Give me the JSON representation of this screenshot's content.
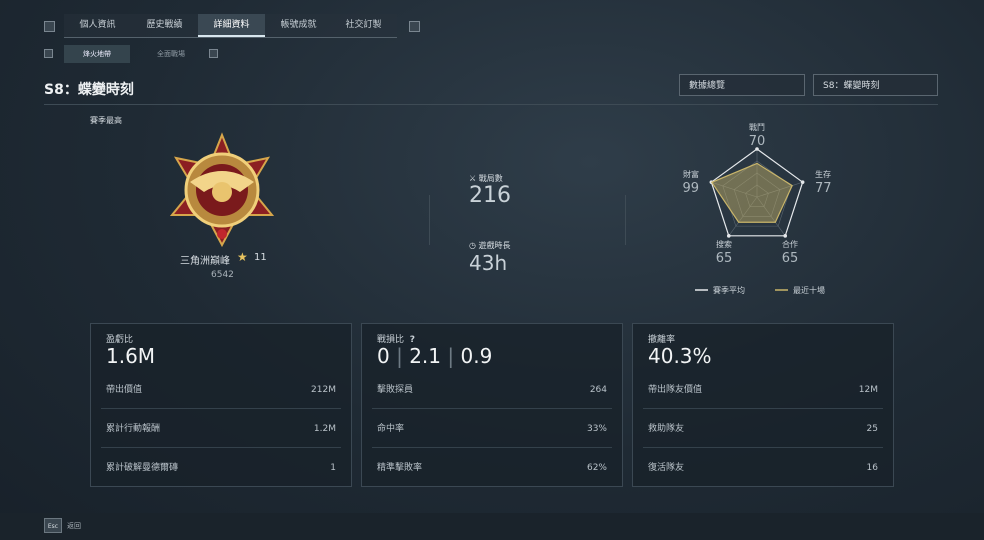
{
  "tabs": [
    "個人資訊",
    "歷史戰績",
    "詳細資料",
    "帳號成就",
    "社交訂製"
  ],
  "subtabs": [
    "烽火地帶",
    "全面戰場"
  ],
  "season_title": "S8：蝶變時刻",
  "dropdowns": [
    "數據總覽",
    "S8：蝶變時刻"
  ],
  "rank": {
    "heading": "賽季最高",
    "name": "三角洲巔峰",
    "stars": "11",
    "score": "6542"
  },
  "summary": [
    {
      "label": "戰局數",
      "value": "216"
    },
    {
      "label": "遊戲時長",
      "value": "43h"
    }
  ],
  "radar": {
    "rlim": [
      0,
      100
    ],
    "axes": [
      {
        "label": "戰鬥",
        "value": 70
      },
      {
        "label": "生存",
        "value": 77
      },
      {
        "label": "合作",
        "value": 65
      },
      {
        "label": "搜索",
        "value": 65
      },
      {
        "label": "財富",
        "value": 99
      }
    ],
    "legend": [
      {
        "name": "賽季平均",
        "color": "#e6e9ec"
      },
      {
        "name": "最近十場",
        "color": "#c9b56a"
      }
    ]
  },
  "cards": [
    {
      "title": "盈虧比",
      "value": "1.6M",
      "rows": [
        [
          "帶出價值",
          "212M"
        ],
        [
          "累計行動報酬",
          "1.2M"
        ],
        [
          "累計破解曼德爾磚",
          "1"
        ]
      ]
    },
    {
      "title": "戰損比",
      "help": "?",
      "values": [
        "0",
        "2.1",
        "0.9"
      ],
      "rows": [
        [
          "擊敗探員",
          "264"
        ],
        [
          "命中率",
          "33%"
        ],
        [
          "精準擊敗率",
          "62%"
        ]
      ]
    },
    {
      "title": "撤離率",
      "value": "40.3%",
      "rows": [
        [
          "帶出隊友價值",
          "12M"
        ],
        [
          "救助隊友",
          "25"
        ],
        [
          "復活隊友",
          "16"
        ]
      ]
    }
  ],
  "footer": {
    "key": "Esc",
    "label": "返回"
  }
}
